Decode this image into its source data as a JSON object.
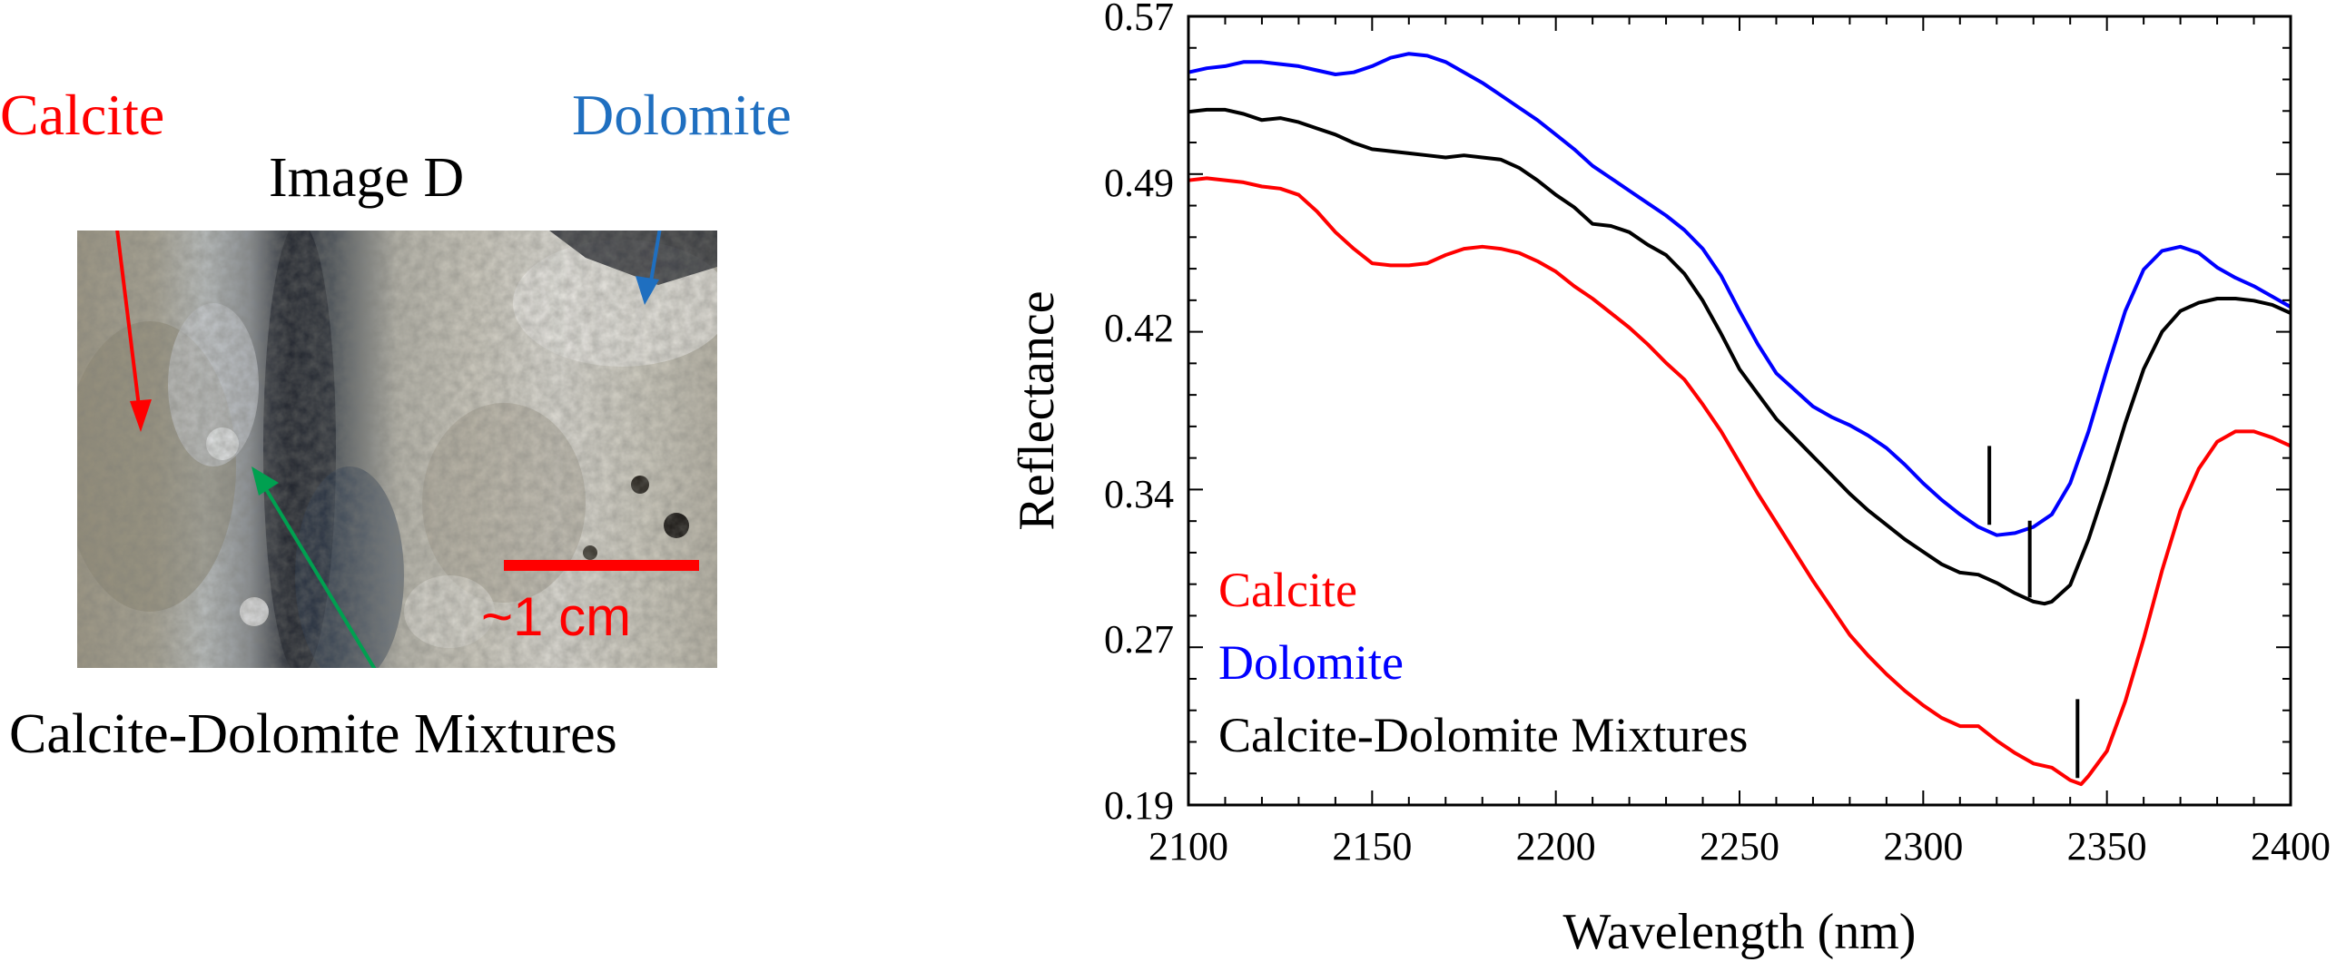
{
  "left": {
    "label_calcite": "Calcite",
    "label_dolomite": "Dolomite",
    "image_title": "Image D",
    "label_mixtures": "Calcite-Dolomite Mixtures",
    "scale_label": "~1 cm",
    "colors": {
      "calcite": "#ff0000",
      "dolomite": "#1f6fc0",
      "mixtures": "#00a050",
      "scalebar": "#ff0000"
    }
  },
  "chart_data": {
    "type": "line",
    "xlabel": "Wavelength (nm)",
    "ylabel": "Reflectance",
    "xlim": [
      2100,
      2400
    ],
    "ylim": [
      0.19,
      0.57
    ],
    "xticks": [
      2100,
      2150,
      2200,
      2250,
      2300,
      2350,
      2400
    ],
    "yticks": [
      0.19,
      0.27,
      0.34,
      0.42,
      0.49,
      0.57
    ],
    "ytick_labels": [
      "0.19",
      "0.27",
      "0.34",
      "0.42",
      "0.49",
      "0.57"
    ],
    "legend_position": "bottom-left",
    "series": [
      {
        "name": "Calcite",
        "color": "#ff0000",
        "x": [
          2100,
          2105,
          2115,
          2120,
          2125,
          2130,
          2135,
          2140,
          2145,
          2150,
          2155,
          2160,
          2165,
          2170,
          2175,
          2180,
          2185,
          2190,
          2195,
          2200,
          2205,
          2210,
          2215,
          2220,
          2225,
          2230,
          2235,
          2240,
          2245,
          2250,
          2255,
          2260,
          2265,
          2270,
          2275,
          2280,
          2285,
          2290,
          2295,
          2300,
          2305,
          2310,
          2315,
          2320,
          2325,
          2330,
          2335,
          2340,
          2343,
          2345,
          2350,
          2355,
          2360,
          2365,
          2370,
          2375,
          2380,
          2385,
          2390,
          2395,
          2400
        ],
        "y": [
          0.491,
          0.492,
          0.49,
          0.488,
          0.487,
          0.484,
          0.476,
          0.466,
          0.458,
          0.451,
          0.45,
          0.45,
          0.451,
          0.455,
          0.458,
          0.459,
          0.458,
          0.456,
          0.452,
          0.447,
          0.44,
          0.434,
          0.427,
          0.42,
          0.412,
          0.403,
          0.395,
          0.383,
          0.37,
          0.355,
          0.34,
          0.326,
          0.312,
          0.298,
          0.285,
          0.272,
          0.262,
          0.253,
          0.245,
          0.238,
          0.232,
          0.228,
          0.228,
          0.221,
          0.215,
          0.21,
          0.208,
          0.202,
          0.2,
          0.204,
          0.216,
          0.24,
          0.27,
          0.303,
          0.332,
          0.352,
          0.365,
          0.37,
          0.37,
          0.367,
          0.363
        ]
      },
      {
        "name": "Dolomite",
        "color": "#0000ff",
        "x": [
          2100,
          2105,
          2110,
          2115,
          2120,
          2125,
          2130,
          2135,
          2140,
          2145,
          2150,
          2155,
          2160,
          2165,
          2170,
          2175,
          2180,
          2185,
          2190,
          2195,
          2200,
          2205,
          2210,
          2215,
          2220,
          2225,
          2230,
          2235,
          2240,
          2245,
          2250,
          2255,
          2260,
          2265,
          2270,
          2275,
          2280,
          2285,
          2290,
          2295,
          2300,
          2305,
          2310,
          2315,
          2320,
          2325,
          2330,
          2335,
          2340,
          2345,
          2350,
          2355,
          2360,
          2365,
          2370,
          2375,
          2380,
          2385,
          2390,
          2395,
          2400
        ],
        "y": [
          0.543,
          0.545,
          0.546,
          0.548,
          0.548,
          0.547,
          0.546,
          0.544,
          0.542,
          0.543,
          0.546,
          0.55,
          0.552,
          0.551,
          0.548,
          0.543,
          0.538,
          0.532,
          0.526,
          0.52,
          0.513,
          0.506,
          0.498,
          0.492,
          0.486,
          0.48,
          0.474,
          0.467,
          0.458,
          0.445,
          0.428,
          0.412,
          0.398,
          0.39,
          0.382,
          0.377,
          0.373,
          0.368,
          0.362,
          0.354,
          0.345,
          0.337,
          0.33,
          0.324,
          0.32,
          0.321,
          0.324,
          0.33,
          0.345,
          0.37,
          0.4,
          0.428,
          0.448,
          0.457,
          0.459,
          0.456,
          0.449,
          0.444,
          0.44,
          0.435,
          0.43
        ]
      },
      {
        "name": "Calcite-Dolomite Mixtures",
        "color": "#000000",
        "x": [
          2100,
          2105,
          2110,
          2115,
          2120,
          2125,
          2130,
          2135,
          2140,
          2145,
          2150,
          2155,
          2160,
          2165,
          2170,
          2175,
          2180,
          2185,
          2190,
          2195,
          2200,
          2205,
          2210,
          2215,
          2220,
          2225,
          2230,
          2235,
          2240,
          2245,
          2250,
          2255,
          2260,
          2265,
          2270,
          2275,
          2280,
          2285,
          2290,
          2295,
          2300,
          2305,
          2310,
          2315,
          2320,
          2325,
          2330,
          2333,
          2335,
          2340,
          2345,
          2350,
          2355,
          2360,
          2365,
          2370,
          2375,
          2380,
          2385,
          2390,
          2395,
          2400
        ],
        "y": [
          0.524,
          0.525,
          0.525,
          0.523,
          0.52,
          0.521,
          0.519,
          0.516,
          0.513,
          0.509,
          0.506,
          0.505,
          0.504,
          0.503,
          0.502,
          0.503,
          0.502,
          0.501,
          0.497,
          0.491,
          0.484,
          0.478,
          0.47,
          0.469,
          0.466,
          0.46,
          0.455,
          0.446,
          0.433,
          0.417,
          0.4,
          0.388,
          0.376,
          0.367,
          0.358,
          0.349,
          0.34,
          0.332,
          0.325,
          0.318,
          0.312,
          0.306,
          0.302,
          0.301,
          0.297,
          0.292,
          0.288,
          0.287,
          0.288,
          0.296,
          0.318,
          0.345,
          0.374,
          0.4,
          0.418,
          0.428,
          0.432,
          0.434,
          0.434,
          0.433,
          0.431,
          0.427
        ]
      }
    ],
    "markers": [
      {
        "x": 2318,
        "y_low": 0.325,
        "y_high": 0.363,
        "color": "#000000"
      },
      {
        "x": 2329,
        "y_low": 0.29,
        "y_high": 0.327,
        "color": "#000000"
      },
      {
        "x": 2342,
        "y_low": 0.203,
        "y_high": 0.241,
        "color": "#000000"
      }
    ]
  }
}
